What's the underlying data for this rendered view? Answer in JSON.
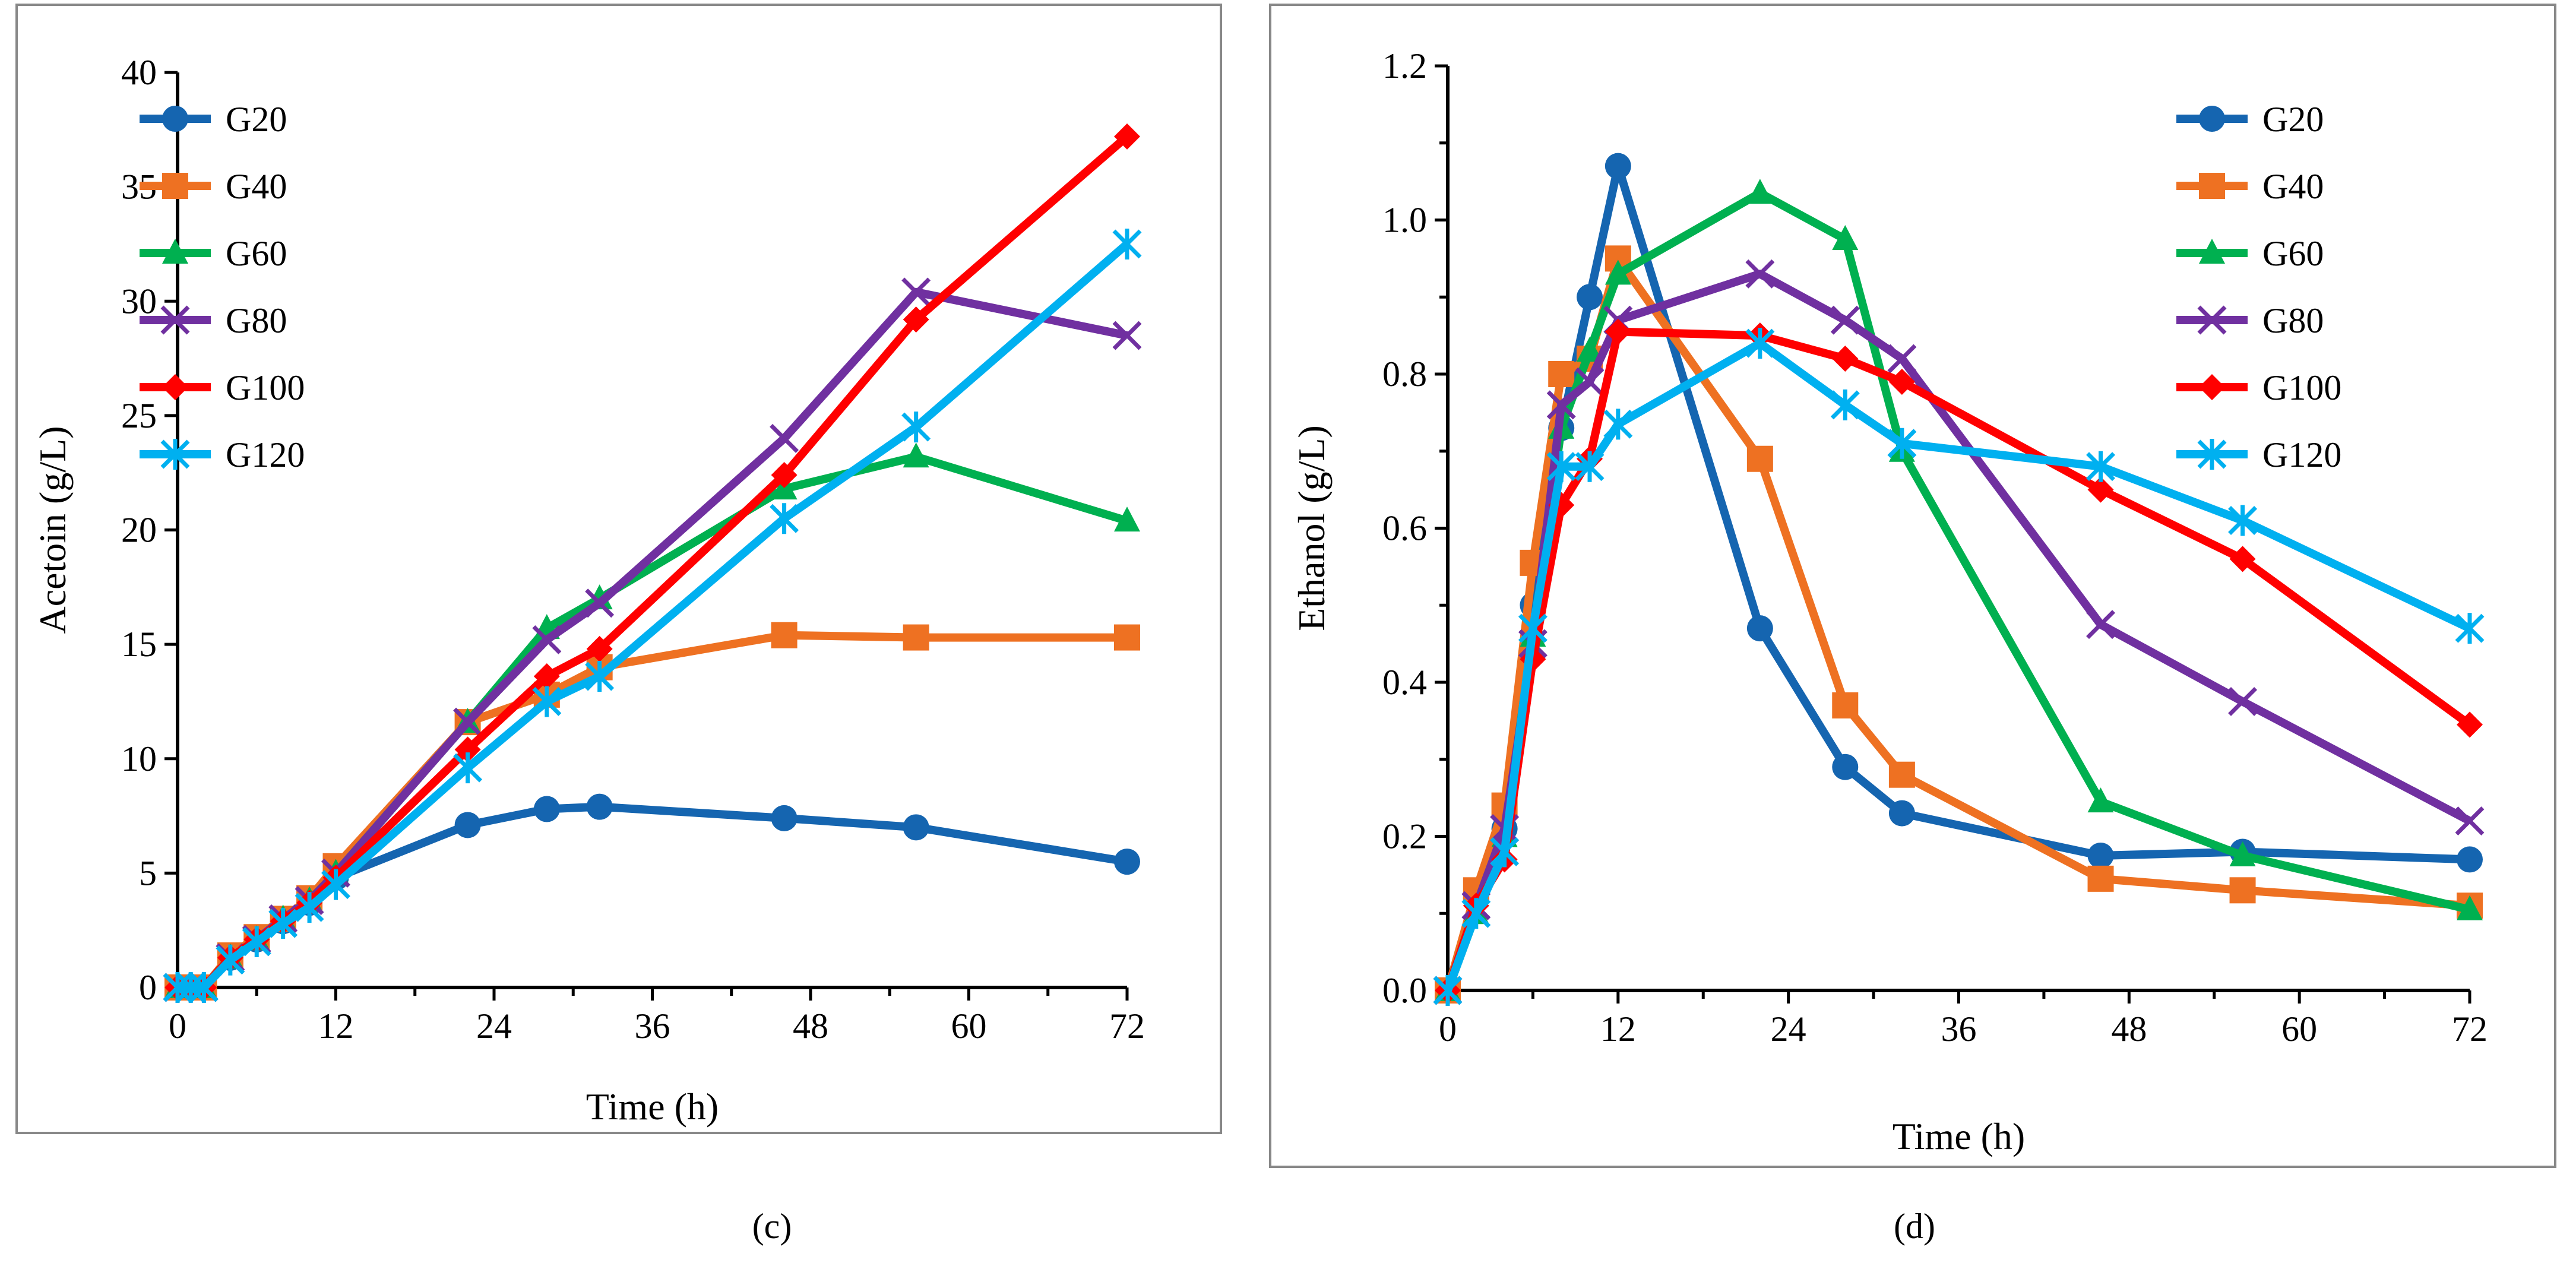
{
  "colors": {
    "G20": "#1565b0",
    "G40": "#ee7122",
    "G60": "#00b050",
    "G80": "#7030a0",
    "G100": "#ff0000",
    "G120": "#00b0f0"
  },
  "chart_data": [
    {
      "type": "line",
      "panel_label": "(c)",
      "xlabel": "Time (h)",
      "ylabel": "Acetoin (g/L)",
      "xlim": [
        0,
        72
      ],
      "ylim": [
        0,
        40
      ],
      "xticks": [
        "0",
        "12",
        "24",
        "36",
        "48",
        "60",
        "72"
      ],
      "yticks": [
        "0",
        "5",
        "10",
        "15",
        "20",
        "25",
        "30",
        "35",
        "40"
      ],
      "legend_position": "top-left",
      "x": [
        0,
        1,
        2,
        4,
        6,
        8,
        10,
        12,
        22,
        28,
        32,
        46,
        56,
        72
      ],
      "series": [
        {
          "name": "G20",
          "marker": "circle",
          "values": [
            0,
            0,
            0,
            1.3,
            2.1,
            2.9,
            3.7,
            4.8,
            7.1,
            7.8,
            7.9,
            7.4,
            7.0,
            5.5
          ]
        },
        {
          "name": "G40",
          "marker": "square",
          "values": [
            0,
            0,
            0,
            1.4,
            2.2,
            3.0,
            3.9,
            5.3,
            11.6,
            12.8,
            14.0,
            15.4,
            15.3,
            15.3
          ]
        },
        {
          "name": "G60",
          "marker": "triangle",
          "values": [
            0,
            0,
            0,
            1.3,
            2.1,
            3.0,
            3.8,
            5.0,
            11.6,
            15.7,
            17.0,
            21.8,
            23.2,
            20.4
          ]
        },
        {
          "name": "G80",
          "marker": "x",
          "values": [
            0,
            0,
            0,
            1.3,
            2.1,
            3.0,
            3.8,
            5.0,
            11.6,
            15.2,
            16.8,
            24.0,
            30.4,
            28.5
          ]
        },
        {
          "name": "G100",
          "marker": "diamond",
          "values": [
            0,
            0,
            0,
            1.3,
            2.1,
            2.9,
            3.7,
            4.8,
            10.4,
            13.6,
            14.8,
            22.4,
            29.2,
            37.2
          ]
        },
        {
          "name": "G120",
          "marker": "asterisk",
          "values": [
            0,
            0,
            0,
            1.2,
            2.0,
            2.8,
            3.5,
            4.5,
            9.6,
            12.5,
            13.6,
            20.5,
            24.5,
            32.5
          ]
        }
      ]
    },
    {
      "type": "line",
      "panel_label": "(d)",
      "xlabel": "Time (h)",
      "ylabel": "Ethanol (g/L)",
      "xlim": [
        0,
        72
      ],
      "ylim": [
        0,
        1.2
      ],
      "xticks": [
        "0",
        "12",
        "24",
        "36",
        "48",
        "60",
        "72"
      ],
      "yticks": [
        "0.0",
        "0.2",
        "0.4",
        "0.6",
        "0.8",
        "1.0",
        "1.2"
      ],
      "legend_position": "top-right",
      "x": [
        0,
        2,
        4,
        6,
        8,
        10,
        12,
        22,
        28,
        32,
        46,
        56,
        72
      ],
      "series": [
        {
          "name": "G20",
          "marker": "circle",
          "values": [
            0,
            0.12,
            0.21,
            0.5,
            0.73,
            0.9,
            1.07,
            0.47,
            0.29,
            0.23,
            0.175,
            0.18,
            0.17
          ]
        },
        {
          "name": "G40",
          "marker": "square",
          "values": [
            0,
            0.13,
            0.24,
            0.555,
            0.8,
            0.82,
            0.95,
            0.69,
            0.37,
            0.28,
            0.145,
            0.13,
            0.11
          ]
        },
        {
          "name": "G60",
          "marker": "triangle",
          "values": [
            0,
            0.1,
            0.2,
            0.46,
            0.73,
            0.83,
            0.93,
            1.035,
            0.975,
            0.7,
            0.245,
            0.175,
            0.105
          ]
        },
        {
          "name": "G80",
          "marker": "x",
          "values": [
            0,
            0.11,
            0.21,
            0.45,
            0.76,
            0.79,
            0.87,
            0.93,
            0.87,
            0.82,
            0.475,
            0.375,
            0.22
          ]
        },
        {
          "name": "G100",
          "marker": "diamond",
          "values": [
            0,
            0.11,
            0.17,
            0.43,
            0.63,
            0.69,
            0.855,
            0.85,
            0.82,
            0.79,
            0.65,
            0.56,
            0.345
          ]
        },
        {
          "name": "G120",
          "marker": "asterisk",
          "values": [
            0,
            0.1,
            0.18,
            0.47,
            0.68,
            0.68,
            0.735,
            0.84,
            0.76,
            0.71,
            0.68,
            0.61,
            0.47
          ]
        }
      ]
    }
  ]
}
